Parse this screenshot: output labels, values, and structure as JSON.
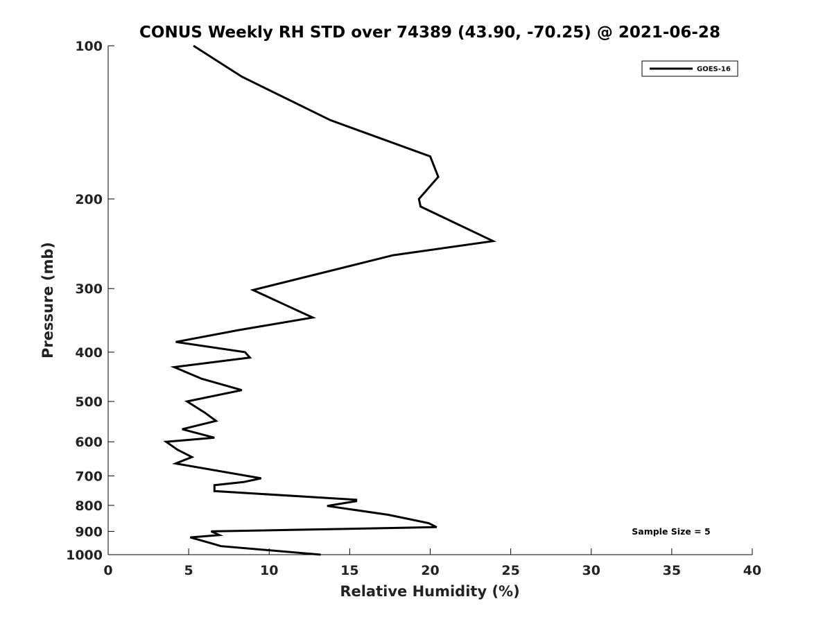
{
  "chart_data": {
    "type": "line",
    "title": "CONUS Weekly RH STD over 74389 (43.90, -70.25) @ 2021-06-28",
    "xlabel": "Relative Humidity (%)",
    "ylabel": "Pressure (mb)",
    "xlim": [
      0,
      40
    ],
    "ylim": [
      1000,
      100
    ],
    "y_scale": "log",
    "x_ticks": [
      "0",
      "5",
      "10",
      "15",
      "20",
      "25",
      "30",
      "35",
      "40"
    ],
    "y_ticks": [
      "100",
      "200",
      "300",
      "400",
      "500",
      "600",
      "700",
      "800",
      "900",
      "1000"
    ],
    "grid": false,
    "legend_position": "top-right",
    "annotation": "Sample Size = 5",
    "series": [
      {
        "name": "GOES-16",
        "color": "#000000",
        "x": [
          5.3,
          8.3,
          13.8,
          20.0,
          20.5,
          19.3,
          19.4,
          23.9,
          17.7,
          9.0,
          11.0,
          12.7,
          8.1,
          4.2,
          8.5,
          8.8,
          4.1,
          5.8,
          8.3,
          4.9,
          6.0,
          6.7,
          4.6,
          6.6,
          3.6,
          4.3,
          5.2,
          4.2,
          9.5,
          8.4,
          6.6,
          6.6,
          15.4,
          15.4,
          13.6,
          17.4,
          19.9,
          20.4,
          6.4,
          6.9,
          5.1,
          6.4,
          7.0,
          13.2
        ],
        "y": [
          100,
          115,
          140,
          165,
          181,
          200,
          207,
          242,
          258,
          302,
          323,
          342,
          362,
          382,
          400,
          410,
          428,
          451,
          475,
          500,
          526,
          546,
          567,
          589,
          600,
          622,
          643,
          662,
          708,
          720,
          730,
          750,
          780,
          785,
          802,
          835,
          867,
          883,
          900,
          915,
          925,
          950,
          962,
          1000
        ]
      }
    ]
  }
}
